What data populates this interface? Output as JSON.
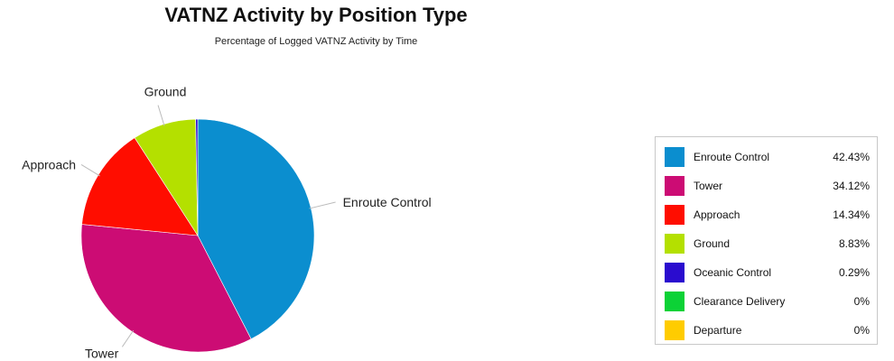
{
  "chart_data": {
    "type": "pie",
    "title": "VATNZ Activity by Position Type",
    "subtitle": "Percentage of Logged VATNZ Activity by Time",
    "legend_position": "right",
    "slices": [
      {
        "name": "Enroute Control",
        "value": 42.43,
        "value_label": "42.43%",
        "color": "#0b8ecf",
        "label_shown": true
      },
      {
        "name": "Tower",
        "value": 34.12,
        "value_label": "34.12%",
        "color": "#cc0c74",
        "label_shown": true
      },
      {
        "name": "Approach",
        "value": 14.34,
        "value_label": "14.34%",
        "color": "#ff0d00",
        "label_shown": true
      },
      {
        "name": "Ground",
        "value": 8.83,
        "value_label": "8.83%",
        "color": "#b4e000",
        "label_shown": true
      },
      {
        "name": "Oceanic Control",
        "value": 0.29,
        "value_label": "0.29%",
        "color": "#2a0ccf",
        "label_shown": false
      },
      {
        "name": "Clearance Delivery",
        "value": 0,
        "value_label": "0%",
        "color": "#0cd236",
        "label_shown": false
      },
      {
        "name": "Departure",
        "value": 0,
        "value_label": "0%",
        "color": "#ffcc00",
        "label_shown": false
      }
    ]
  }
}
